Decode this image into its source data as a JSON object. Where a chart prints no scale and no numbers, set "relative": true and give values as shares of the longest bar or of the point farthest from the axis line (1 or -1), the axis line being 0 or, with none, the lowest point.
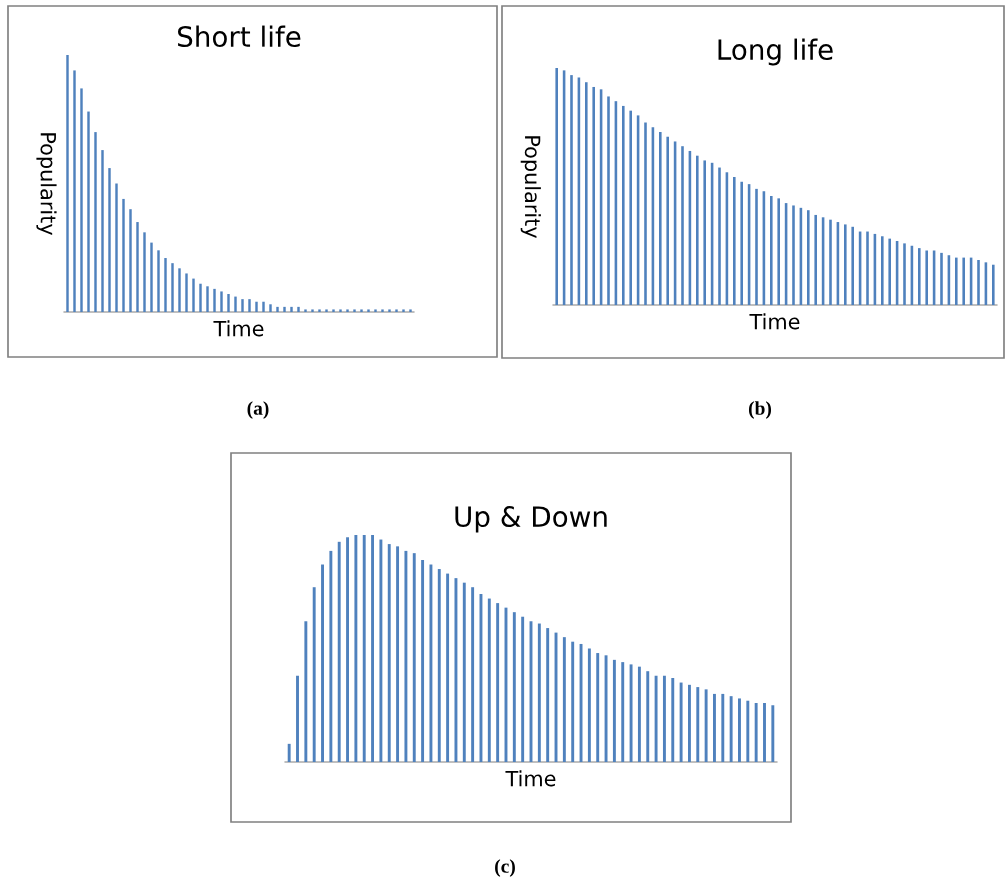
{
  "chart_data": [
    {
      "type": "bar",
      "title": "Short life",
      "xlabel": "Time",
      "ylabel": "Popularity",
      "relative": true,
      "annotations": [
        "(a)"
      ],
      "categories": [
        null,
        null,
        null,
        null,
        null,
        null,
        null,
        null,
        null,
        null,
        null,
        null,
        null,
        null,
        null,
        null,
        null,
        null,
        null,
        null,
        null,
        null,
        null,
        null,
        null,
        null,
        null,
        null,
        null,
        null,
        null,
        null,
        null,
        null,
        null,
        null,
        null,
        null,
        null,
        null,
        null,
        null,
        null,
        null,
        null,
        null,
        null,
        null,
        null,
        null
      ],
      "series": [
        {
          "color": "#4f81bd",
          "values": [
            1.0,
            0.94,
            0.87,
            0.78,
            0.7,
            0.63,
            0.56,
            0.5,
            0.44,
            0.4,
            0.35,
            0.31,
            0.27,
            0.24,
            0.21,
            0.19,
            0.17,
            0.15,
            0.13,
            0.11,
            0.1,
            0.09,
            0.08,
            0.07,
            0.06,
            0.05,
            0.05,
            0.04,
            0.04,
            0.03,
            0.02,
            0.02,
            0.02,
            0.02,
            0.01,
            0.01,
            0.01,
            0.01,
            0.01,
            0.01,
            0.01,
            0.01,
            0.01,
            0.01,
            0.01,
            0.01,
            0.01,
            0.01,
            0.01,
            0.01
          ]
        }
      ]
    },
    {
      "type": "bar",
      "title": "Long life",
      "xlabel": "Time",
      "ylabel": "Popularity",
      "relative": true,
      "annotations": [
        "(b)"
      ],
      "categories": [
        null,
        null,
        null,
        null,
        null,
        null,
        null,
        null,
        null,
        null,
        null,
        null,
        null,
        null,
        null,
        null,
        null,
        null,
        null,
        null,
        null,
        null,
        null,
        null,
        null,
        null,
        null,
        null,
        null,
        null,
        null,
        null,
        null,
        null,
        null,
        null,
        null,
        null,
        null,
        null,
        null,
        null,
        null,
        null,
        null,
        null,
        null,
        null,
        null,
        null,
        null,
        null,
        null,
        null,
        null,
        null,
        null,
        null,
        null,
        null
      ],
      "series": [
        {
          "color": "#4f81bd",
          "values": [
            1.0,
            0.99,
            0.97,
            0.96,
            0.94,
            0.92,
            0.91,
            0.88,
            0.86,
            0.84,
            0.82,
            0.8,
            0.77,
            0.75,
            0.73,
            0.71,
            0.69,
            0.67,
            0.65,
            0.63,
            0.61,
            0.6,
            0.58,
            0.56,
            0.54,
            0.52,
            0.51,
            0.49,
            0.48,
            0.46,
            0.45,
            0.43,
            0.42,
            0.41,
            0.4,
            0.38,
            0.37,
            0.36,
            0.35,
            0.34,
            0.33,
            0.31,
            0.31,
            0.3,
            0.29,
            0.28,
            0.27,
            0.26,
            0.25,
            0.24,
            0.23,
            0.23,
            0.22,
            0.21,
            0.2,
            0.2,
            0.2,
            0.19,
            0.18,
            0.17
          ]
        }
      ]
    },
    {
      "type": "bar",
      "title": "Up & Down",
      "xlabel": "Time",
      "relative": true,
      "annotations": [
        "(c)"
      ],
      "categories": [
        null,
        null,
        null,
        null,
        null,
        null,
        null,
        null,
        null,
        null,
        null,
        null,
        null,
        null,
        null,
        null,
        null,
        null,
        null,
        null,
        null,
        null,
        null,
        null,
        null,
        null,
        null,
        null,
        null,
        null,
        null,
        null,
        null,
        null,
        null,
        null,
        null,
        null,
        null,
        null,
        null,
        null,
        null,
        null,
        null,
        null,
        null,
        null,
        null,
        null,
        null,
        null,
        null,
        null,
        null,
        null,
        null,
        null,
        null
      ],
      "series": [
        {
          "color": "#4f81bd",
          "values": [
            0.08,
            0.38,
            0.62,
            0.77,
            0.87,
            0.93,
            0.97,
            0.99,
            1.0,
            1.0,
            1.0,
            0.98,
            0.96,
            0.95,
            0.93,
            0.92,
            0.89,
            0.87,
            0.85,
            0.83,
            0.81,
            0.79,
            0.77,
            0.74,
            0.72,
            0.7,
            0.68,
            0.66,
            0.64,
            0.62,
            0.61,
            0.59,
            0.57,
            0.55,
            0.53,
            0.52,
            0.5,
            0.48,
            0.47,
            0.45,
            0.44,
            0.43,
            0.42,
            0.4,
            0.38,
            0.38,
            0.37,
            0.35,
            0.34,
            0.33,
            0.32,
            0.3,
            0.3,
            0.29,
            0.28,
            0.27,
            0.26,
            0.26,
            0.25
          ]
        }
      ]
    }
  ]
}
